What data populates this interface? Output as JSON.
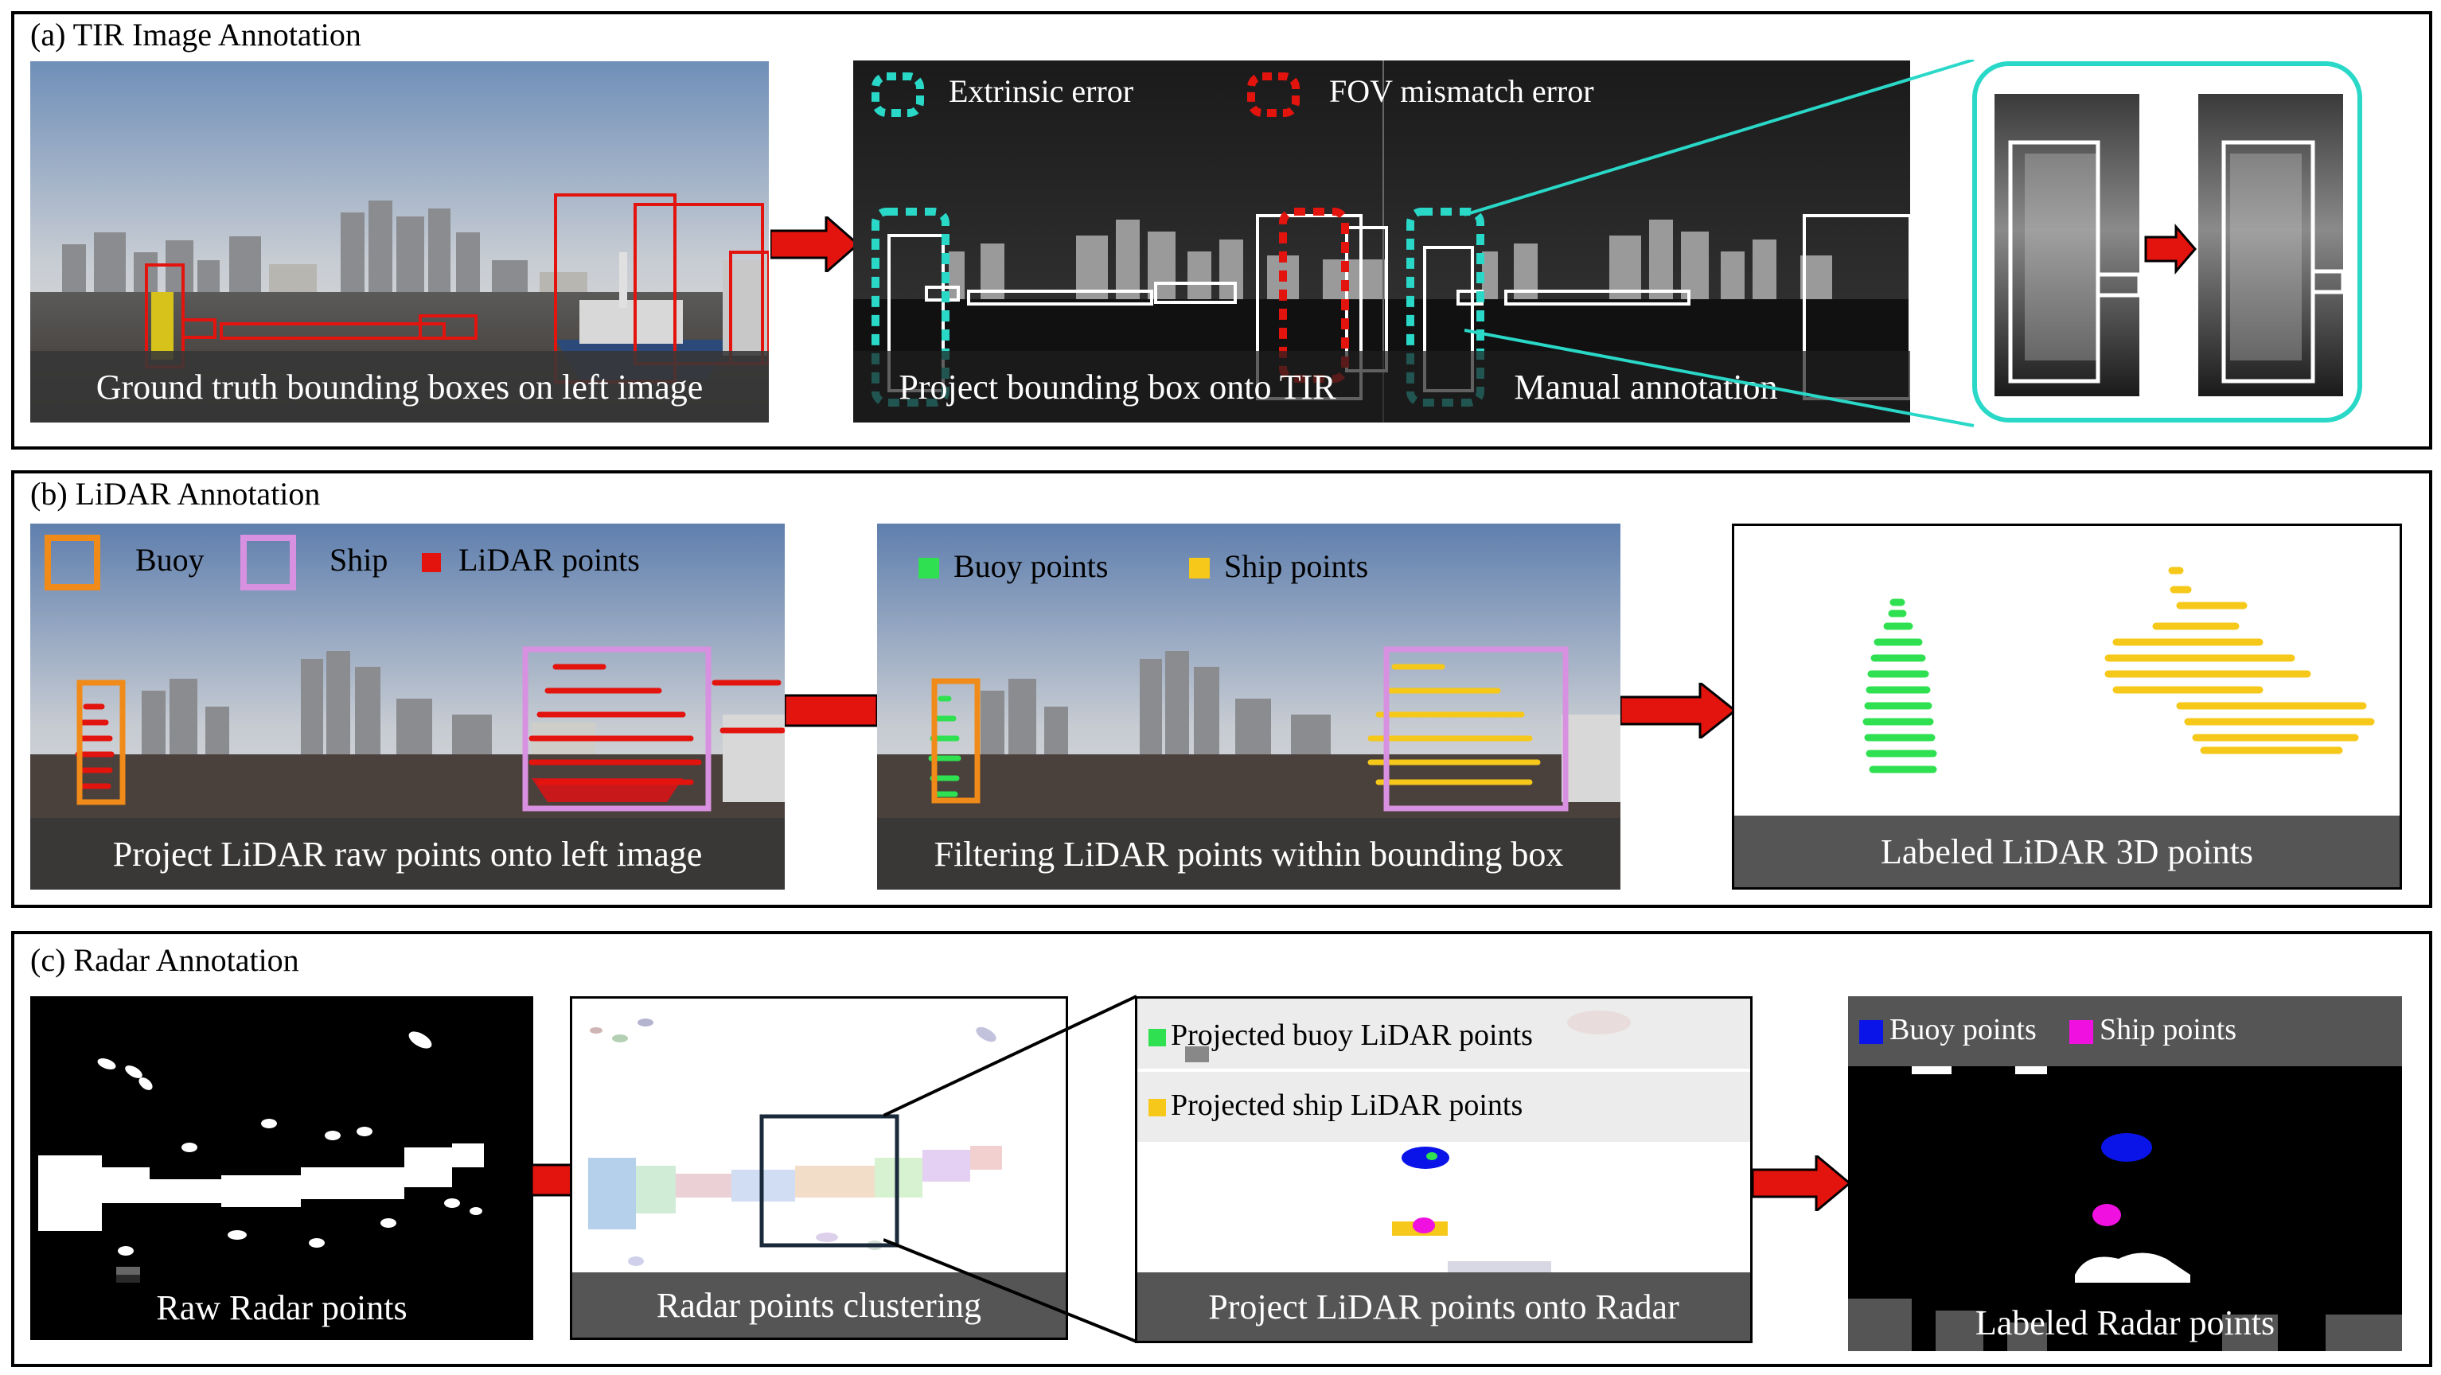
{
  "sections": {
    "tir": {
      "title": "(a) TIR Image Annotation",
      "captions": {
        "left": "Ground truth bounding boxes on left image",
        "project": "Project bounding box onto TIR",
        "manual": "Manual annotation"
      },
      "legend": {
        "extrinsic": "Extrinsic error",
        "fov": "FOV mismatch error"
      }
    },
    "lidar": {
      "title": "(b) LiDAR Annotation",
      "legend": {
        "buoy": "Buoy",
        "ship": "Ship",
        "lidar_points": "LiDAR points",
        "buoy_points": "Buoy points",
        "ship_points": "Ship points"
      },
      "captions": {
        "project": "Project LiDAR raw points onto left image",
        "filter": "Filtering LiDAR points within bounding box",
        "labeled": "Labeled LiDAR 3D points"
      }
    },
    "radar": {
      "title": "(c) Radar Annotation",
      "legend": {
        "proj_buoy": "Projected buoy LiDAR points",
        "proj_ship": "Projected ship LiDAR points",
        "buoy_points": "Buoy points",
        "ship_points": "Ship points"
      },
      "captions": {
        "raw": "Raw Radar points",
        "cluster": "Radar points clustering",
        "project": "Project LiDAR points onto Radar",
        "labeled": "Labeled Radar points"
      }
    }
  },
  "colors": {
    "arrow": "#e3140e",
    "extrinsic": "#2ad8c8",
    "fov": "#e3140e",
    "buoy_box": "#f08a18",
    "ship_box": "#d890e0",
    "lidar_red": "#e3140e",
    "buoy_green": "#2fe050",
    "ship_yellow": "#f5c81a",
    "radar_buoy": "#0a14e8",
    "radar_ship": "#f010e0"
  }
}
